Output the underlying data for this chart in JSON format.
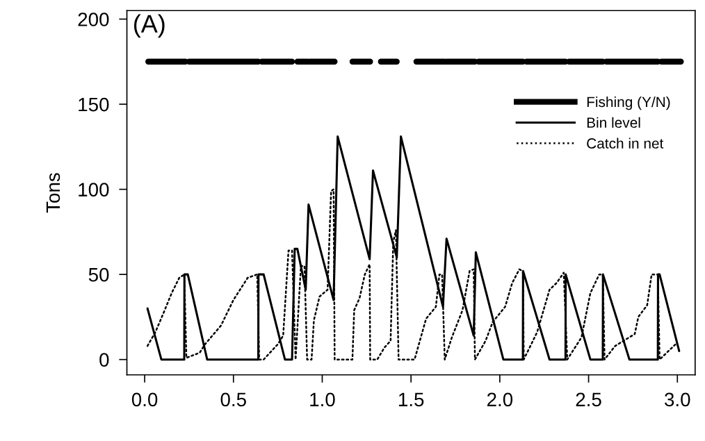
{
  "chart_data": {
    "type": "line",
    "ylabel": "Tons",
    "annotations": [
      "(A)"
    ],
    "xlim": [
      -0.1,
      3.1
    ],
    "ylim": [
      -9,
      205
    ],
    "xticks": [
      {
        "value": 0,
        "label": "0.0"
      },
      {
        "value": 0.5,
        "label": "0.5"
      },
      {
        "value": 1,
        "label": "1.0"
      },
      {
        "value": 1.5,
        "label": "1.5"
      },
      {
        "value": 2,
        "label": "2.0"
      },
      {
        "value": 2.5,
        "label": "2.5"
      },
      {
        "value": 3,
        "label": "3.0"
      }
    ],
    "yticks": [
      0,
      50,
      100,
      150,
      200
    ],
    "grid": false,
    "legend": "top right",
    "marker": "none",
    "series": [
      {
        "name": "Fishing (Y/N)",
        "color": "#000000",
        "line_style": "solid",
        "x": [
          0.02,
          0.23,
          0.235,
          0.25,
          0.64,
          0.645,
          0.66,
          0.83,
          0.845,
          0.86,
          0.92,
          0.925,
          0.93,
          1.07,
          1.12,
          1.17,
          1.27,
          1.3,
          1.33,
          1.42,
          1.47,
          1.53,
          1.69,
          1.695,
          1.7,
          1.86,
          1.87,
          1.88,
          2.13,
          2.14,
          2.15,
          2.37,
          2.38,
          2.39,
          2.58,
          2.59,
          2.6,
          2.89,
          2.9,
          2.91,
          3.02
        ],
        "values": [
          175,
          175,
          null,
          175,
          175,
          null,
          175,
          175,
          null,
          175,
          175,
          null,
          175,
          175,
          null,
          175,
          175,
          null,
          175,
          175,
          null,
          175,
          175,
          null,
          175,
          175,
          null,
          175,
          175,
          null,
          175,
          175,
          null,
          175,
          175,
          null,
          175,
          175,
          null,
          175,
          175
        ]
      },
      {
        "name": "Bin level",
        "color": "#000000",
        "line_style": "solid",
        "x": [
          0.016,
          0.094,
          0.223,
          0.224,
          0.243,
          0.352,
          0.64,
          0.641,
          0.67,
          0.79,
          0.83,
          0.845,
          0.86,
          0.907,
          0.923,
          1.064,
          1.087,
          1.267,
          1.286,
          1.42,
          1.443,
          1.68,
          1.7,
          1.853,
          1.865,
          2.02,
          2.13,
          2.131,
          2.28,
          2.37,
          2.371,
          2.51,
          2.58,
          2.581,
          2.73,
          2.89,
          2.891,
          2.9,
          3.01
        ],
        "values": [
          30,
          0,
          0,
          50,
          50,
          0,
          0,
          50,
          50,
          0,
          0,
          65,
          65,
          41,
          91,
          35,
          131,
          59,
          111,
          60,
          131,
          31,
          71,
          14,
          63,
          0,
          0,
          52,
          0,
          0,
          50,
          0,
          0,
          50,
          0,
          0,
          50,
          50,
          5
        ]
      },
      {
        "name": "Catch in net",
        "color": "#000000",
        "line_style": "dotted",
        "x": [
          0.016,
          0.06,
          0.105,
          0.152,
          0.195,
          0.223,
          0.235,
          0.31,
          0.34,
          0.43,
          0.5,
          0.58,
          0.634,
          0.645,
          0.67,
          0.75,
          0.78,
          0.81,
          0.83,
          0.85,
          0.88,
          0.9,
          0.915,
          0.94,
          0.953,
          0.985,
          1.03,
          1.05,
          1.064,
          1.07,
          1.17,
          1.18,
          1.21,
          1.24,
          1.267,
          1.27,
          1.31,
          1.35,
          1.385,
          1.4,
          1.415,
          1.43,
          1.52,
          1.585,
          1.64,
          1.66,
          1.675,
          1.69,
          1.73,
          1.79,
          1.83,
          1.853,
          1.86,
          1.92,
          1.96,
          2.03,
          2.07,
          2.11,
          2.13,
          2.135,
          2.21,
          2.28,
          2.32,
          2.36,
          2.38,
          2.46,
          2.51,
          2.56,
          2.58,
          2.59,
          2.65,
          2.76,
          2.78,
          2.83,
          2.855,
          2.89,
          2.9,
          2.99
        ],
        "values": [
          8,
          16,
          27,
          39,
          48,
          50,
          1,
          4,
          9,
          20,
          35,
          48,
          50,
          0,
          0,
          9,
          14,
          64,
          64,
          0,
          55,
          55,
          0,
          0,
          23,
          37,
          41,
          99,
          100,
          0,
          0,
          29,
          36,
          50,
          56,
          0,
          0,
          7,
          11,
          69,
          76,
          0,
          0,
          24,
          31,
          50,
          50,
          0,
          13,
          29,
          52,
          53,
          0,
          11,
          22,
          31,
          45,
          53,
          52,
          0,
          16,
          41,
          45,
          51,
          0,
          13,
          39,
          50,
          50,
          0,
          8,
          15,
          25,
          32,
          50,
          50,
          0,
          9
        ]
      }
    ]
  }
}
